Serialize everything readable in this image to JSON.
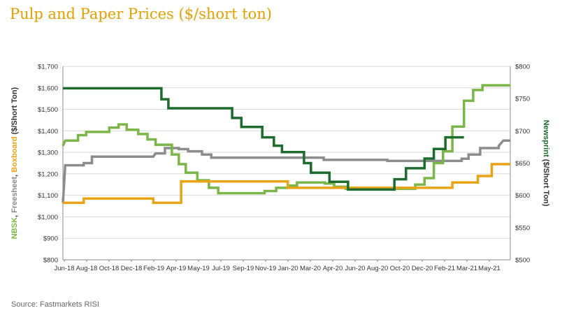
{
  "title": "Pulp and Paper Prices ($/short ton)",
  "source": "Source:  Fastmarkets RISI",
  "chart_data": {
    "type": "line",
    "x_tick_labels": [
      "Jun-18",
      "Aug-18",
      "Oct-18",
      "Dec-18",
      "Feb-19",
      "Apr-19",
      "May-19",
      "Jul-19",
      "Sep-19",
      "Nov-19",
      "Jan-20",
      "Mar-20",
      "Apr-20",
      "Jun-20",
      "Aug-20",
      "Oct-20",
      "Dec-20",
      "Feb-21",
      "Mar-21",
      "May-21"
    ],
    "left_axis": {
      "label_parts": [
        {
          "text": "NBSK",
          "color": "#7AB648"
        },
        {
          "text": ", ",
          "color": "#333333"
        },
        {
          "text": "Freesheet",
          "color": "#8C8C8C"
        },
        {
          "text": ", ",
          "color": "#333333"
        },
        {
          "text": "Boxboard",
          "color": "#E8A317"
        },
        {
          "text": " ($/Short Ton)",
          "color": "#333333"
        }
      ],
      "ylim": [
        800,
        1700
      ],
      "ticks": [
        "$800",
        "$900",
        "$1,000",
        "$1,100",
        "$1,200",
        "$1,300",
        "$1,400",
        "$1,500",
        "$1,600",
        "$1,700"
      ]
    },
    "right_axis": {
      "label_parts": [
        {
          "text": "Newsprint",
          "color": "#1E6B2E"
        },
        {
          "text": " ($/Short Ton)",
          "color": "#333333"
        }
      ],
      "ylim": [
        500,
        800
      ],
      "ticks": [
        "$500",
        "$550",
        "$600",
        "$650",
        "$700",
        "$750",
        "$800"
      ]
    },
    "grid": true,
    "series": [
      {
        "name": "Freesheet",
        "axis": "left",
        "color": "#8C8C8C",
        "points": [
          [
            0,
            1065
          ],
          [
            0.2,
            1240
          ],
          [
            1.8,
            1240
          ],
          [
            1.8,
            1250
          ],
          [
            2.5,
            1250
          ],
          [
            2.5,
            1280
          ],
          [
            7.8,
            1280
          ],
          [
            8,
            1295
          ],
          [
            8.8,
            1295
          ],
          [
            8.8,
            1320
          ],
          [
            10,
            1320
          ],
          [
            10,
            1315
          ],
          [
            10.8,
            1315
          ],
          [
            10.8,
            1305
          ],
          [
            12,
            1305
          ],
          [
            12,
            1290
          ],
          [
            12.8,
            1290
          ],
          [
            12.8,
            1275
          ],
          [
            22.5,
            1275
          ],
          [
            22.5,
            1265
          ],
          [
            28,
            1265
          ],
          [
            28,
            1260
          ],
          [
            34.4,
            1260
          ],
          [
            34.4,
            1270
          ],
          [
            35,
            1270
          ],
          [
            35,
            1290
          ],
          [
            36,
            1290
          ],
          [
            36,
            1320
          ],
          [
            37.6,
            1320
          ],
          [
            37.6,
            1330
          ],
          [
            38,
            1355
          ],
          [
            38.6,
            1355
          ]
        ]
      },
      {
        "name": "NBSK",
        "axis": "left",
        "color": "#7AB648",
        "points": [
          [
            0,
            1330
          ],
          [
            0.2,
            1355
          ],
          [
            1.3,
            1355
          ],
          [
            1.3,
            1380
          ],
          [
            2,
            1380
          ],
          [
            2,
            1395
          ],
          [
            4,
            1395
          ],
          [
            4,
            1415
          ],
          [
            4.8,
            1415
          ],
          [
            4.8,
            1430
          ],
          [
            5.5,
            1430
          ],
          [
            5.5,
            1405
          ],
          [
            6.5,
            1405
          ],
          [
            6.5,
            1385
          ],
          [
            7.3,
            1385
          ],
          [
            7.3,
            1360
          ],
          [
            8,
            1360
          ],
          [
            8,
            1335
          ],
          [
            9.4,
            1335
          ],
          [
            9.4,
            1290
          ],
          [
            10,
            1290
          ],
          [
            10,
            1245
          ],
          [
            10.6,
            1245
          ],
          [
            10.6,
            1205
          ],
          [
            11.6,
            1205
          ],
          [
            11.6,
            1170
          ],
          [
            12.6,
            1170
          ],
          [
            12.6,
            1135
          ],
          [
            13.4,
            1135
          ],
          [
            13.4,
            1110
          ],
          [
            17.4,
            1110
          ],
          [
            17.4,
            1120
          ],
          [
            18.4,
            1120
          ],
          [
            18.4,
            1135
          ],
          [
            19.4,
            1135
          ],
          [
            19.4,
            1145
          ],
          [
            20.2,
            1145
          ],
          [
            20.2,
            1160
          ],
          [
            22.6,
            1160
          ],
          [
            22.6,
            1155
          ],
          [
            23.4,
            1155
          ],
          [
            23.4,
            1140
          ],
          [
            24.4,
            1140
          ],
          [
            24.4,
            1130
          ],
          [
            29,
            1130
          ],
          [
            29,
            1130
          ],
          [
            30.4,
            1130
          ],
          [
            30.4,
            1150
          ],
          [
            31.2,
            1150
          ],
          [
            31.2,
            1180
          ],
          [
            32,
            1180
          ],
          [
            32,
            1250
          ],
          [
            32.8,
            1250
          ],
          [
            32.8,
            1305
          ],
          [
            33.6,
            1305
          ],
          [
            33.6,
            1420
          ],
          [
            34.6,
            1420
          ],
          [
            34.6,
            1540
          ],
          [
            35.4,
            1540
          ],
          [
            35.4,
            1590
          ],
          [
            36.2,
            1590
          ],
          [
            36.2,
            1612
          ],
          [
            38.6,
            1612
          ]
        ]
      },
      {
        "name": "Boxboard",
        "axis": "left",
        "color": "#E8A317",
        "points": [
          [
            0,
            1065
          ],
          [
            1.8,
            1065
          ],
          [
            1.8,
            1085
          ],
          [
            7.8,
            1085
          ],
          [
            7.8,
            1065
          ],
          [
            10.2,
            1065
          ],
          [
            10.2,
            1165
          ],
          [
            19.4,
            1165
          ],
          [
            19.4,
            1135
          ],
          [
            33.6,
            1135
          ],
          [
            33.6,
            1160
          ],
          [
            35.8,
            1160
          ],
          [
            35.8,
            1190
          ],
          [
            37,
            1190
          ],
          [
            37,
            1245
          ],
          [
            38.6,
            1245
          ]
        ]
      },
      {
        "name": "Newsprint",
        "axis": "right",
        "color": "#1E6B2E",
        "points": [
          [
            0,
            766
          ],
          [
            8.5,
            766
          ],
          [
            8.5,
            749
          ],
          [
            9.1,
            749
          ],
          [
            9.1,
            735
          ],
          [
            14.6,
            735
          ],
          [
            14.6,
            720
          ],
          [
            15.4,
            720
          ],
          [
            15.4,
            706
          ],
          [
            17.2,
            706
          ],
          [
            17.2,
            690
          ],
          [
            18.2,
            690
          ],
          [
            18.2,
            677
          ],
          [
            18.9,
            677
          ],
          [
            18.9,
            667
          ],
          [
            20.8,
            667
          ],
          [
            20.8,
            650
          ],
          [
            21.4,
            650
          ],
          [
            21.4,
            635
          ],
          [
            23,
            635
          ],
          [
            23,
            621
          ],
          [
            24.6,
            621
          ],
          [
            24.6,
            609
          ],
          [
            28.6,
            609
          ],
          [
            28.6,
            625
          ],
          [
            29.6,
            625
          ],
          [
            29.6,
            642
          ],
          [
            31.2,
            642
          ],
          [
            31.2,
            657
          ],
          [
            32,
            657
          ],
          [
            32,
            672
          ],
          [
            33,
            672
          ],
          [
            33,
            690
          ],
          [
            34.6,
            690
          ]
        ]
      }
    ]
  }
}
